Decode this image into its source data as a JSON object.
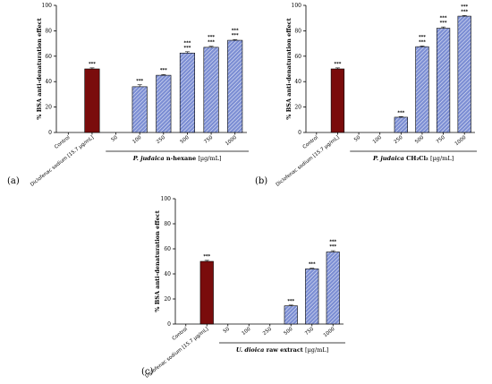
{
  "chart_data": [
    {
      "type": "bar",
      "panel": "(a)",
      "ylabel": "% BSA anti-denaturation effect",
      "xlabel_italic": "P. judaica",
      "xlabel_bold": "n-hexane",
      "xlabel_unit": "[µg/mL]",
      "ylim": [
        0,
        100
      ],
      "yticks": [
        "0",
        "20",
        "40",
        "60",
        "80",
        "100"
      ],
      "categories": [
        "Control",
        "Diclofenac sodium [15.7 µg/mL]",
        "50",
        "100",
        "250",
        "500",
        "750",
        "1000"
      ],
      "values": [
        0,
        50,
        0,
        36,
        45,
        62.5,
        67,
        72.5
      ],
      "errors": [
        0,
        0.8,
        0,
        1.5,
        0.6,
        1.0,
        0.8,
        0.6
      ],
      "significance": [
        [],
        [
          "***"
        ],
        [],
        [
          "***"
        ],
        [
          "***"
        ],
        [
          "***",
          "***"
        ],
        [
          "***",
          "***"
        ],
        [
          "***",
          "***"
        ]
      ],
      "bar_kind": [
        "none",
        "reference",
        "none",
        "sample",
        "sample",
        "sample",
        "sample",
        "sample"
      ]
    },
    {
      "type": "bar",
      "panel": "(b)",
      "ylabel": "% BSA anti-denaturation effect",
      "xlabel_italic": "P. judaica",
      "xlabel_bold": "CH₂Cl₂",
      "xlabel_unit": "[µg/mL]",
      "ylim": [
        0,
        100
      ],
      "yticks": [
        "0",
        "20",
        "40",
        "60",
        "80",
        "100"
      ],
      "categories": [
        "Control",
        "Diclofenac sodium [15.7 µg/mL]",
        "50",
        "100",
        "250",
        "500",
        "750",
        "1000"
      ],
      "values": [
        0,
        50,
        0,
        0,
        12,
        67.5,
        82,
        91.5
      ],
      "errors": [
        0,
        0.8,
        0,
        0,
        0.5,
        0.6,
        1.0,
        0.5
      ],
      "significance": [
        [],
        [
          "***"
        ],
        [],
        [],
        [
          "***"
        ],
        [
          "***",
          "***"
        ],
        [
          "***",
          "***"
        ],
        [
          "***",
          "***"
        ]
      ],
      "bar_kind": [
        "none",
        "reference",
        "none",
        "none",
        "sample",
        "sample",
        "sample",
        "sample"
      ]
    },
    {
      "type": "bar",
      "panel": "(c)",
      "ylabel": "% BSA anti-denaturation effect",
      "xlabel_italic": "U. dioica",
      "xlabel_bold": "raw extract",
      "xlabel_unit": "[µg/mL]",
      "ylim": [
        0,
        100
      ],
      "yticks": [
        "0",
        "20",
        "40",
        "60",
        "80",
        "100"
      ],
      "categories": [
        "Control",
        "Diclofenac sodium [15.7 µg/mL]",
        "50",
        "100",
        "250",
        "500",
        "750",
        "1000"
      ],
      "values": [
        0,
        50,
        0,
        0,
        0,
        14.5,
        44,
        57.5
      ],
      "errors": [
        0,
        0.8,
        0,
        0,
        0,
        0.6,
        0.5,
        1.0
      ],
      "significance": [
        [],
        [
          "***"
        ],
        [],
        [],
        [],
        [
          "***"
        ],
        [
          "***"
        ],
        [
          "***",
          "***"
        ]
      ],
      "bar_kind": [
        "none",
        "reference",
        "none",
        "none",
        "none",
        "sample",
        "sample",
        "sample"
      ]
    }
  ],
  "colors": {
    "reference": "#7a0c0c",
    "sample": "#7d8fd4",
    "sample_hatch": "#ffffff",
    "significance_light": "#777777"
  }
}
